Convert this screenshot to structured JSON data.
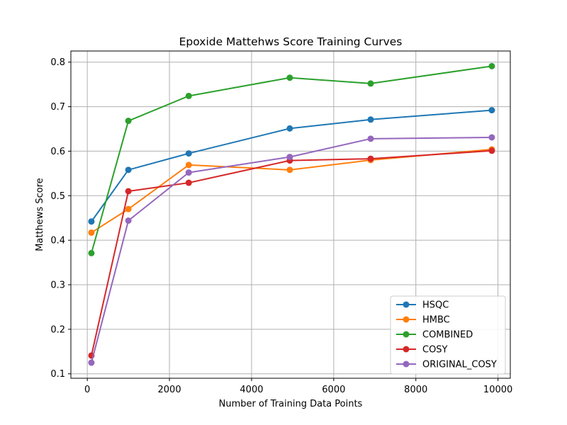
{
  "chart_data": {
    "type": "line",
    "title": "Epoxide Mattehws Score Training Curves",
    "xlabel": "Number of Training Data Points",
    "ylabel": "Matthews Score",
    "xlim": [
      -400,
      10300
    ],
    "ylim": [
      0.09,
      0.825
    ],
    "x_ticks": [
      0,
      2000,
      4000,
      6000,
      8000,
      10000
    ],
    "y_ticks": [
      0.1,
      0.2,
      0.3,
      0.4,
      0.5,
      0.6,
      0.7,
      0.8
    ],
    "grid": true,
    "legend_position": "lower-right",
    "x": [
      100,
      1000,
      2470,
      4930,
      6900,
      9850
    ],
    "series": [
      {
        "name": "HSQC",
        "color": "#1f77b4",
        "values": [
          0.442,
          0.558,
          0.595,
          0.651,
          0.671,
          0.692
        ]
      },
      {
        "name": "HMBC",
        "color": "#ff7f0e",
        "values": [
          0.417,
          0.47,
          0.569,
          0.558,
          0.58,
          0.604
        ]
      },
      {
        "name": "COMBINED",
        "color": "#2ca02c",
        "values": [
          0.371,
          0.668,
          0.724,
          0.765,
          0.752,
          0.791
        ]
      },
      {
        "name": "COSY",
        "color": "#d62728",
        "values": [
          0.141,
          0.51,
          0.529,
          0.579,
          0.583,
          0.601
        ]
      },
      {
        "name": "ORIGINAL_COSY",
        "color": "#9467bd",
        "values": [
          0.125,
          0.444,
          0.552,
          0.587,
          0.628,
          0.631
        ]
      }
    ]
  }
}
